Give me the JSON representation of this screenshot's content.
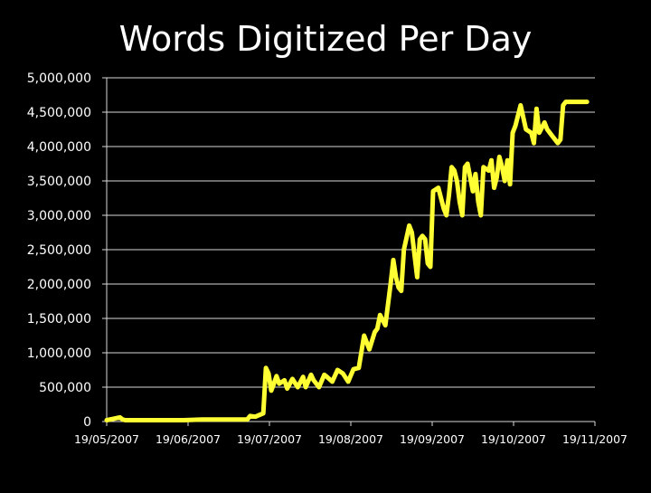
{
  "chart_data": {
    "type": "line",
    "title": "Words Digitized Per Day",
    "xlabel": "",
    "ylabel": "",
    "ylim": [
      0,
      5000000
    ],
    "yticks": [
      0,
      500000,
      1000000,
      1500000,
      2000000,
      2500000,
      3000000,
      3500000,
      4000000,
      4500000,
      5000000
    ],
    "ytick_labels": [
      "0",
      "500,000",
      "1,000,000",
      "1,500,000",
      "2,000,000",
      "2,500,000",
      "3,000,000",
      "3,500,000",
      "4,000,000",
      "4,500,000",
      "5,000,000"
    ],
    "xlim": [
      "2007-05-19",
      "2007-11-19"
    ],
    "xtick_labels": [
      "19/05/2007",
      "19/06/2007",
      "19/07/2007",
      "19/08/2007",
      "19/09/2007",
      "19/10/2007",
      "19/11/2007"
    ],
    "grid": true,
    "series_color": "#ffff33",
    "x": [
      "2007-05-19",
      "2007-05-24",
      "2007-05-25",
      "2007-05-26",
      "2007-05-29",
      "2007-06-03",
      "2007-06-10",
      "2007-06-17",
      "2007-06-24",
      "2007-07-01",
      "2007-07-08",
      "2007-07-11",
      "2007-07-12",
      "2007-07-14",
      "2007-07-17",
      "2007-07-18",
      "2007-07-19",
      "2007-07-20",
      "2007-07-21",
      "2007-07-22",
      "2007-07-23",
      "2007-07-25",
      "2007-07-26",
      "2007-07-28",
      "2007-07-30",
      "2007-08-01",
      "2007-08-02",
      "2007-08-04",
      "2007-08-05",
      "2007-08-07",
      "2007-08-09",
      "2007-08-10",
      "2007-08-12",
      "2007-08-14",
      "2007-08-16",
      "2007-08-18",
      "2007-08-20",
      "2007-08-22",
      "2007-08-24",
      "2007-08-26",
      "2007-08-28",
      "2007-08-29",
      "2007-08-30",
      "2007-09-01",
      "2007-09-02",
      "2007-09-03",
      "2007-09-04",
      "2007-09-05",
      "2007-09-06",
      "2007-09-07",
      "2007-09-08",
      "2007-09-10",
      "2007-09-11",
      "2007-09-13",
      "2007-09-14",
      "2007-09-15",
      "2007-09-16",
      "2007-09-17",
      "2007-09-18",
      "2007-09-19",
      "2007-09-21",
      "2007-09-23",
      "2007-09-24",
      "2007-09-25",
      "2007-09-26",
      "2007-09-27",
      "2007-09-28",
      "2007-09-29",
      "2007-09-30",
      "2007-10-01",
      "2007-10-02",
      "2007-10-04",
      "2007-10-05",
      "2007-10-06",
      "2007-10-07",
      "2007-10-08",
      "2007-10-10",
      "2007-10-11",
      "2007-10-12",
      "2007-10-13",
      "2007-10-14",
      "2007-10-15",
      "2007-10-16",
      "2007-10-17",
      "2007-10-18",
      "2007-10-19",
      "2007-10-20",
      "2007-10-22",
      "2007-10-24",
      "2007-10-26",
      "2007-10-27",
      "2007-10-28",
      "2007-10-29",
      "2007-10-31",
      "2007-11-01",
      "2007-11-02",
      "2007-11-03",
      "2007-11-05",
      "2007-11-06",
      "2007-11-07",
      "2007-11-08",
      "2007-11-09",
      "2007-11-10",
      "2007-11-11",
      "2007-11-12",
      "2007-11-13",
      "2007-11-14",
      "2007-11-15",
      "2007-11-16"
    ],
    "series": [
      {
        "values": [
          20000,
          60000,
          30000,
          20000,
          20000,
          20000,
          20000,
          20000,
          30000,
          30000,
          30000,
          30000,
          80000,
          70000,
          120000,
          780000,
          700000,
          450000,
          550000,
          660000,
          550000,
          600000,
          480000,
          620000,
          500000,
          650000,
          500000,
          680000,
          600000,
          500000,
          680000,
          650000,
          580000,
          750000,
          700000,
          580000,
          760000,
          780000,
          1250000,
          1050000,
          1300000,
          1350000,
          1550000,
          1400000,
          1700000,
          2000000,
          2350000,
          2100000,
          1950000,
          1900000,
          2500000,
          2850000,
          2750000,
          2100000,
          2650000,
          2700000,
          2650000,
          2300000,
          2250000,
          3350000,
          3400000,
          3100000,
          3000000,
          3300000,
          3700000,
          3650000,
          3500000,
          3200000,
          3000000,
          3700000,
          3750000,
          3350000,
          3600000,
          3200000,
          3000000,
          3700000,
          3650000,
          3800000,
          3400000,
          3550000,
          3850000,
          3700000,
          3500000,
          3800000,
          3450000,
          4200000,
          4300000,
          4600000,
          4250000,
          4200000,
          4050000,
          4550000,
          4200000,
          4350000,
          4250000,
          4200000,
          4150000,
          4050000,
          4100000,
          4600000,
          4650000,
          4650000,
          4650000,
          4650000,
          4650000,
          4650000,
          4650000,
          4650000,
          4650000
        ]
      }
    ]
  }
}
